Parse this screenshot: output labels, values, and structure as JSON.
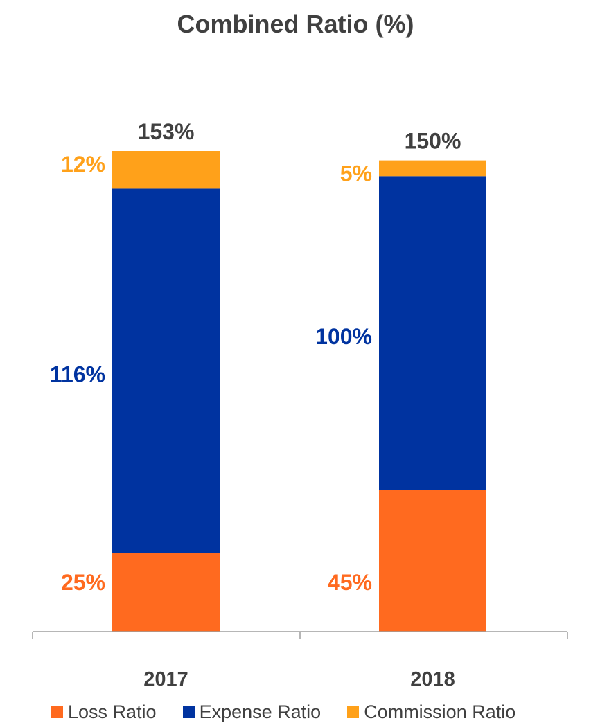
{
  "chart_data": {
    "type": "bar",
    "stacked": true,
    "title": "Combined Ratio (%)",
    "categories": [
      "2017",
      "2018"
    ],
    "series": [
      {
        "name": "Loss Ratio",
        "values": [
          25,
          45
        ],
        "labels": [
          "25%",
          "45%"
        ],
        "color": "#FF6A1F"
      },
      {
        "name": "Expense Ratio",
        "values": [
          116,
          100
        ],
        "labels": [
          "116%",
          "100%"
        ],
        "color": "#0033A0"
      },
      {
        "name": "Commission Ratio",
        "values": [
          12,
          5
        ],
        "labels": [
          "12%",
          "5%"
        ],
        "color": "#FFA11A"
      }
    ],
    "totals": [
      "153%",
      "150%"
    ],
    "total_values": [
      153,
      150
    ],
    "ylim": [
      0,
      153
    ],
    "grid": false,
    "legend_position": "bottom",
    "total_label_color": "#404040"
  }
}
